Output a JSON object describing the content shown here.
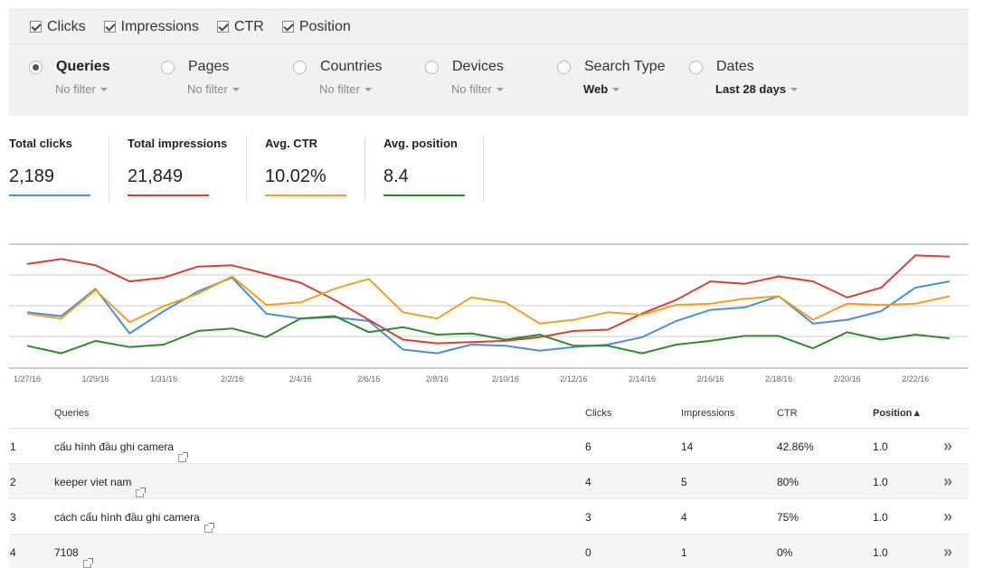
{
  "metrics_toggles": [
    {
      "label": "Clicks",
      "checked": true
    },
    {
      "label": "Impressions",
      "checked": true
    },
    {
      "label": "CTR",
      "checked": true
    },
    {
      "label": "Position",
      "checked": true
    }
  ],
  "dimensions": [
    {
      "label": "Queries",
      "filter": "No filter",
      "selected": true
    },
    {
      "label": "Pages",
      "filter": "No filter",
      "selected": false
    },
    {
      "label": "Countries",
      "filter": "No filter",
      "selected": false
    },
    {
      "label": "Devices",
      "filter": "No filter",
      "selected": false
    },
    {
      "label": "Search Type",
      "filter": "Web",
      "selected": false
    },
    {
      "label": "Dates",
      "filter": "Last 28 days",
      "selected": false
    }
  ],
  "summary": [
    {
      "label": "Total clicks",
      "value": "2,189",
      "color": "#4a90d9"
    },
    {
      "label": "Total impressions",
      "value": "21,849",
      "color": "#d04437"
    },
    {
      "label": "Avg. CTR",
      "value": "10.02%",
      "color": "#f0a020"
    },
    {
      "label": "Avg. position",
      "value": "8.4",
      "color": "#2e8b2e"
    }
  ],
  "chart_data": {
    "type": "line",
    "x": [
      "1/27/16",
      "1/28/16",
      "1/29/16",
      "1/30/16",
      "1/31/16",
      "2/1/16",
      "2/2/16",
      "2/3/16",
      "2/4/16",
      "2/5/16",
      "2/6/16",
      "2/7/16",
      "2/8/16",
      "2/9/16",
      "2/10/16",
      "2/11/16",
      "2/12/16",
      "2/13/16",
      "2/14/16",
      "2/15/16",
      "2/16/16",
      "2/17/16",
      "2/18/16",
      "2/19/16",
      "2/20/16",
      "2/21/16",
      "2/22/16",
      "2/23/16"
    ],
    "x_tick_labels": [
      "1/27/16",
      "1/29/16",
      "1/31/16",
      "2/2/16",
      "2/4/16",
      "2/6/16",
      "2/8/16",
      "2/10/16",
      "2/12/16",
      "2/14/16",
      "2/16/16",
      "2/18/16",
      "2/20/16",
      "2/22/16"
    ],
    "series": [
      {
        "color": "#4a90d9",
        "values": [
          0.45,
          0.42,
          0.64,
          0.28,
          0.46,
          0.62,
          0.73,
          0.44,
          0.4,
          0.41,
          0.38,
          0.15,
          0.12,
          0.19,
          0.18,
          0.14,
          0.17,
          0.19,
          0.25,
          0.38,
          0.47,
          0.49,
          0.58,
          0.36,
          0.39,
          0.46,
          0.65,
          0.7
        ]
      },
      {
        "color": "#d04437",
        "values": [
          0.84,
          0.88,
          0.83,
          0.7,
          0.73,
          0.82,
          0.83,
          0.76,
          0.69,
          0.55,
          0.39,
          0.23,
          0.2,
          0.21,
          0.22,
          0.25,
          0.3,
          0.31,
          0.44,
          0.55,
          0.7,
          0.68,
          0.74,
          0.7,
          0.57,
          0.65,
          0.91,
          0.9
        ]
      },
      {
        "color": "#f0a020",
        "values": [
          0.44,
          0.4,
          0.63,
          0.37,
          0.5,
          0.6,
          0.74,
          0.51,
          0.53,
          0.64,
          0.72,
          0.45,
          0.4,
          0.57,
          0.53,
          0.36,
          0.39,
          0.45,
          0.43,
          0.51,
          0.52,
          0.56,
          0.58,
          0.39,
          0.52,
          0.51,
          0.52,
          0.58
        ]
      },
      {
        "color": "#2e8b2e",
        "values": [
          0.18,
          0.12,
          0.22,
          0.17,
          0.19,
          0.3,
          0.32,
          0.25,
          0.4,
          0.42,
          0.29,
          0.33,
          0.27,
          0.28,
          0.23,
          0.27,
          0.18,
          0.18,
          0.12,
          0.19,
          0.22,
          0.26,
          0.26,
          0.16,
          0.29,
          0.23,
          0.27,
          0.24
        ]
      }
    ]
  },
  "table": {
    "headers": {
      "queries": "Queries",
      "clicks": "Clicks",
      "impressions": "Impressions",
      "ctr": "CTR",
      "position": "Position▲"
    },
    "rows": [
      {
        "rank": "1",
        "query": "cấu hình đầu ghi camera",
        "clicks": "6",
        "impressions": "14",
        "ctr": "42.86%",
        "position": "1.0"
      },
      {
        "rank": "2",
        "query": "keeper viet nam",
        "clicks": "4",
        "impressions": "5",
        "ctr": "80%",
        "position": "1.0"
      },
      {
        "rank": "3",
        "query": "cách cấu hình đầu ghi camera",
        "clicks": "3",
        "impressions": "4",
        "ctr": "75%",
        "position": "1.0"
      },
      {
        "rank": "4",
        "query": "7108",
        "clicks": "0",
        "impressions": "1",
        "ctr": "0%",
        "position": "1.0"
      }
    ],
    "more_glyph": "»"
  }
}
